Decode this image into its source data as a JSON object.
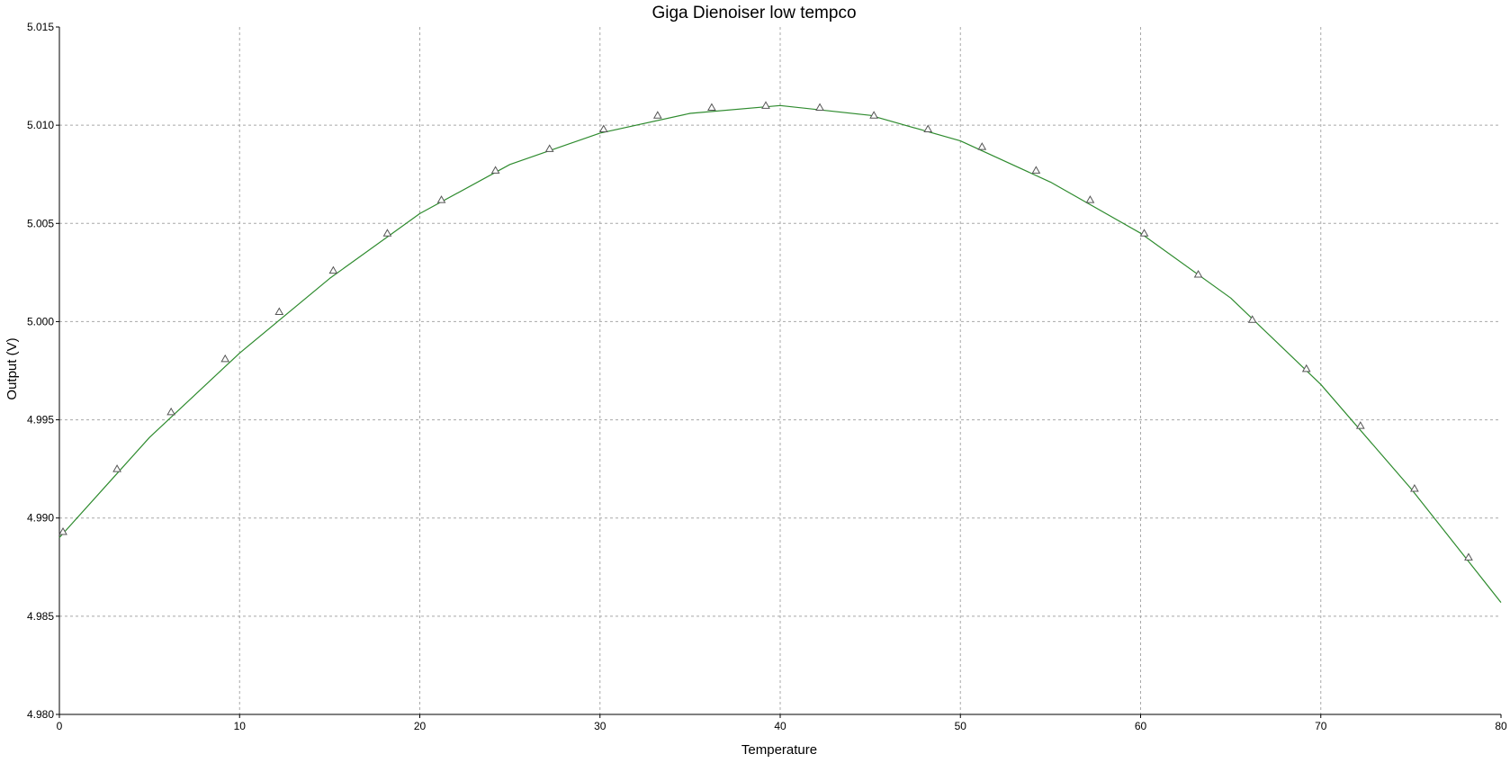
{
  "chart_data": {
    "type": "line",
    "title": "Giga Dienoiser low tempco",
    "xlabel": "Temperature",
    "ylabel": "Output (V)",
    "xlim": [
      0,
      80
    ],
    "ylim": [
      4.98,
      5.015
    ],
    "grid": true,
    "x_ticks": [
      "0",
      "10",
      "20",
      "30",
      "40",
      "50",
      "60",
      "70",
      "80"
    ],
    "y_ticks": [
      "4.980",
      "4.985",
      "4.990",
      "4.995",
      "5.000",
      "5.005",
      "5.010",
      "5.015"
    ],
    "series": [
      {
        "color": "#2e8b2e",
        "marker": "triangle",
        "curve": {
          "x": [
            0,
            5,
            10,
            15,
            20,
            25,
            30,
            35,
            40,
            45,
            50,
            55,
            60,
            65,
            70,
            75,
            80
          ],
          "y": [
            4.989,
            4.9941,
            4.9984,
            5.0022,
            5.0055,
            5.008,
            5.0096,
            5.0106,
            5.011,
            5.0105,
            5.0092,
            5.0071,
            5.0045,
            5.0012,
            4.9968,
            4.9915,
            4.9857
          ]
        },
        "points": {
          "x": [
            0.2,
            3.2,
            6.2,
            9.2,
            12.2,
            15.2,
            18.2,
            21.2,
            24.2,
            27.2,
            30.2,
            33.2,
            36.2,
            39.2,
            42.2,
            45.2,
            48.2,
            51.2,
            54.2,
            57.2,
            60.2,
            63.2,
            66.2,
            69.2,
            72.2,
            75.2,
            78.2
          ],
          "y": [
            4.9893,
            4.9925,
            4.9954,
            4.9981,
            5.0005,
            5.0026,
            5.0045,
            5.0062,
            5.0077,
            5.0088,
            5.0098,
            5.0105,
            5.0109,
            5.011,
            5.0109,
            5.0105,
            5.0098,
            5.0089,
            5.0077,
            5.0062,
            5.0045,
            5.0024,
            5.0001,
            4.9976,
            4.9947,
            4.9915,
            4.988
          ]
        }
      }
    ]
  }
}
